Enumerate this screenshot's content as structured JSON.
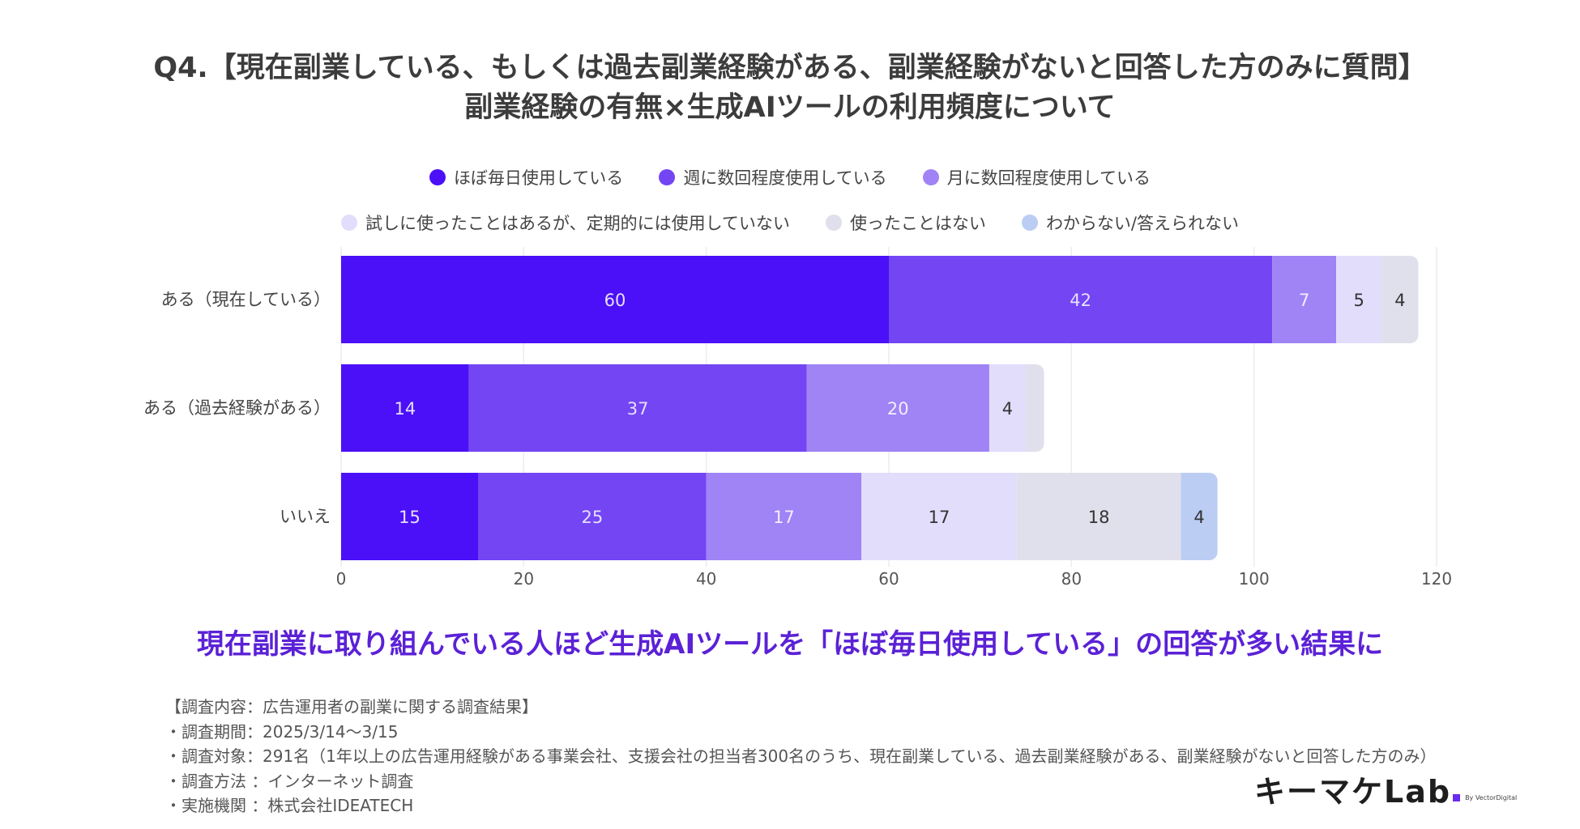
{
  "title": {
    "line1": "Q4.【現在副業している、もしくは過去副業経験がある、副業経験がないと回答した方のみに質問】",
    "line2": "副業経験の有無×生成AIツールの利用頻度について"
  },
  "legend": {
    "row1": [
      {
        "label": "ほぼ毎日使用している",
        "color": "#4b10f7"
      },
      {
        "label": "週に数回程度使用している",
        "color": "#7345f3"
      },
      {
        "label": "月に数回程度使用している",
        "color": "#a083f5"
      }
    ],
    "row2": [
      {
        "label": "試しに使ったことはあるが、定期的には使用していない",
        "color": "#e2ddfb"
      },
      {
        "label": "使ったことはない",
        "color": "#e0e0ec"
      },
      {
        "label": "わからない/答えられない",
        "color": "#bccdf4"
      }
    ]
  },
  "chart_data": {
    "type": "bar",
    "orientation": "horizontal",
    "stacked": true,
    "categories": [
      "ある（現在している）",
      "ある（過去経験がある）",
      "いいえ"
    ],
    "series": [
      {
        "name": "ほぼ毎日使用している",
        "color": "#4b10f7",
        "label_color": "#e6e0ff",
        "values": [
          60,
          14,
          15
        ]
      },
      {
        "name": "週に数回程度使用している",
        "color": "#7345f3",
        "label_color": "#e6e0ff",
        "values": [
          42,
          37,
          25
        ]
      },
      {
        "name": "月に数回程度使用している",
        "color": "#a083f5",
        "label_color": "#f2eeff",
        "values": [
          7,
          20,
          17
        ]
      },
      {
        "name": "試しに使ったことはあるが、定期的には使用していない",
        "color": "#e2ddfb",
        "label_color": "#333333",
        "values": [
          5,
          4,
          17
        ]
      },
      {
        "name": "使ったことはない",
        "color": "#e0e0ec",
        "label_color": "#333333",
        "values": [
          4,
          2,
          18
        ]
      },
      {
        "name": "わからない/答えられない",
        "color": "#bccdf4",
        "label_color": "#333333",
        "values": [
          0,
          0,
          4
        ]
      }
    ],
    "data_labels": [
      [
        "60",
        "42",
        "7",
        "5",
        "4",
        ""
      ],
      [
        "14",
        "37",
        "20",
        "4",
        "",
        ""
      ],
      [
        "15",
        "25",
        "17",
        "17",
        "18",
        "4"
      ]
    ],
    "xlim": [
      0,
      120
    ],
    "xticks": [
      0,
      20,
      40,
      60,
      80,
      100,
      120
    ],
    "grid": true
  },
  "conclusion": "現在副業に取り組んでいる人ほど生成AIツールを「ほぼ毎日使用している」の回答が多い結果に",
  "survey_notes": [
    "【調査内容：広告運用者の副業に関する調査結果】",
    "・調査期間：2025/3/14〜3/15",
    "・調査対象：291名（1年以上の広告運用経験がある事業会社、支援会社の担当者300名のうち、現在副業している、過去副業経験がある、副業経験がないと回答した方のみ）",
    "・調査方法 ：インターネット調査",
    "・実施機関 ：株式会社IDEATECH"
  ],
  "logo": {
    "text": "キーマケLab",
    "sub": "By VectorDigital"
  }
}
